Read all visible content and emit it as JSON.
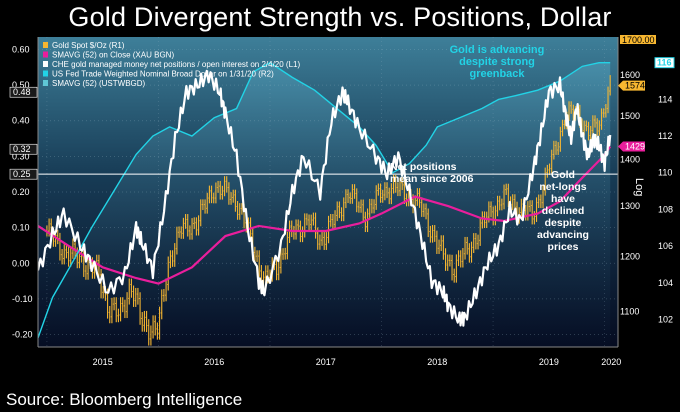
{
  "title": "Gold Divergent Strength vs. Positions, Dollar",
  "source": "Source: Bloomberg Intelligence",
  "chart_data": {
    "type": "line",
    "title": "Gold Divergent Strength vs. Positions, Dollar",
    "x_tick_labels": [
      "2015",
      "2016",
      "2017",
      "2018",
      "2019",
      "2020"
    ],
    "x_range": [
      2014.92,
      2020.12
    ],
    "left_axis": {
      "ticks": [
        -0.2,
        -0.1,
        0.0,
        0.1,
        0.2,
        0.3,
        0.4,
        0.5,
        0.6
      ],
      "tick_labels": [
        "-0.20",
        "-0.10",
        "0.00",
        "0.10",
        "0.20",
        "0.30",
        "0.40",
        "0.50",
        "0.60"
      ],
      "ylim": [
        -0.235,
        0.635
      ],
      "callouts": [
        "0.48",
        "0.32",
        "0.25"
      ]
    },
    "right_axis_1": {
      "label": "R1",
      "ticks": [
        1100,
        1200,
        1300,
        1400,
        1500,
        1600
      ],
      "tick_labels": [
        "1100",
        "1200",
        "1300",
        "1400",
        "1500",
        "1600"
      ],
      "ylim": [
        1040,
        1700
      ],
      "top_label": "1700.00",
      "log_label": "Log",
      "callouts": [
        {
          "text": "1574",
          "color": "#f7b731"
        },
        {
          "text": "1429",
          "color": "#e91e9c"
        }
      ]
    },
    "right_axis_2": {
      "label": "R2",
      "ticks": [
        102,
        104,
        106,
        108,
        110,
        112,
        114
      ],
      "tick_labels": [
        "102",
        "104",
        "106",
        "108",
        "110",
        "112",
        "114"
      ],
      "ylim": [
        100.5,
        117.4
      ],
      "callouts": [
        {
          "text": "116",
          "color": "#22d3e6"
        }
      ]
    },
    "legend": {
      "placement": "top-left",
      "entries": [
        {
          "label": "Gold Spot $/Oz  (R1)",
          "color": "#f7b731"
        },
        {
          "label": "SMAVG (52)  on Close (XAU BGN)",
          "color": "#e91e9c"
        },
        {
          "label": "CHE gold managed money net positions / open interest on 2/4/20  (L1)",
          "color": "#ffffff"
        },
        {
          "label": "US Fed Trade Weighted Nominal Broad Dollar  on 1/31/20  (R2)",
          "color": "#22d3e6"
        },
        {
          "label": "SMAVG (52)  (USTWBGD)",
          "color": "#5fc7d6"
        }
      ]
    },
    "reference_line": {
      "label_lines": [
        "Net positions",
        "mean since 2006"
      ],
      "value": 0.25
    },
    "annotations": [
      {
        "lines": [
          "Gold is advancing",
          "despite strong",
          "greenback"
        ],
        "color": "#22d3e6"
      },
      {
        "lines": [
          "Gold",
          "net-longs",
          "have",
          "declined",
          "despite",
          "advancing",
          "prices"
        ],
        "color": "#ffffff"
      }
    ],
    "series": [
      {
        "name": "Gold Spot $/Oz",
        "axis": "R1",
        "style": "bar-candles",
        "color": "#f7b731",
        "x": [
          2015.0,
          2015.15,
          2015.3,
          2015.45,
          2015.55,
          2015.65,
          2015.75,
          2015.85,
          2016.0,
          2016.1,
          2016.2,
          2016.35,
          2016.5,
          2016.6,
          2016.7,
          2016.85,
          2016.95,
          2017.1,
          2017.2,
          2017.35,
          2017.45,
          2017.6,
          2017.7,
          2017.85,
          2018.0,
          2018.1,
          2018.2,
          2018.35,
          2018.45,
          2018.55,
          2018.65,
          2018.8,
          2018.95,
          2019.1,
          2019.2,
          2019.35,
          2019.45,
          2019.55,
          2019.65,
          2019.75,
          2019.85,
          2019.95,
          2020.05
        ],
        "values": [
          1250,
          1210,
          1195,
          1170,
          1110,
          1090,
          1150,
          1080,
          1070,
          1200,
          1250,
          1270,
          1340,
          1330,
          1310,
          1220,
          1150,
          1200,
          1250,
          1270,
          1230,
          1280,
          1330,
          1280,
          1330,
          1340,
          1330,
          1300,
          1250,
          1200,
          1180,
          1220,
          1280,
          1320,
          1300,
          1280,
          1340,
          1420,
          1500,
          1510,
          1460,
          1480,
          1574
        ]
      },
      {
        "name": "SMAVG (52) on Close (XAU BGN)",
        "axis": "R1",
        "color": "#e91e9c",
        "x": [
          2014.92,
          2015.2,
          2015.5,
          2015.8,
          2016.0,
          2016.3,
          2016.6,
          2016.9,
          2017.2,
          2017.5,
          2017.8,
          2018.0,
          2018.3,
          2018.6,
          2018.9,
          2019.1,
          2019.4,
          2019.6,
          2019.8,
          2020.0,
          2020.05
        ],
        "values": [
          1260,
          1220,
          1180,
          1160,
          1150,
          1180,
          1240,
          1260,
          1250,
          1250,
          1265,
          1285,
          1320,
          1300,
          1275,
          1270,
          1285,
          1310,
          1360,
          1410,
          1429
        ]
      },
      {
        "name": "CHE gold managed money net positions / open interest",
        "axis": "L1",
        "color": "#ffffff",
        "x": [
          2014.92,
          2015.05,
          2015.15,
          2015.3,
          2015.4,
          2015.55,
          2015.7,
          2015.8,
          2015.85,
          2015.95,
          2016.05,
          2016.15,
          2016.25,
          2016.35,
          2016.45,
          2016.55,
          2016.6,
          2016.7,
          2016.8,
          2016.9,
          2016.95,
          2017.1,
          2017.2,
          2017.3,
          2017.45,
          2017.55,
          2017.65,
          2017.7,
          2017.8,
          2017.95,
          2018.05,
          2018.15,
          2018.25,
          2018.35,
          2018.45,
          2018.55,
          2018.6,
          2018.7,
          2018.75,
          2018.85,
          2018.95,
          2019.05,
          2019.15,
          2019.25,
          2019.35,
          2019.42,
          2019.5,
          2019.6,
          2019.65,
          2019.7,
          2019.75,
          2019.8,
          2019.85,
          2019.9,
          2019.95,
          2020.0,
          2020.05
        ],
        "values": [
          -0.02,
          0.08,
          0.14,
          0.05,
          0.0,
          -0.08,
          -0.03,
          0.1,
          0.06,
          -0.02,
          0.15,
          0.35,
          0.48,
          0.5,
          0.53,
          0.48,
          0.42,
          0.3,
          0.1,
          -0.05,
          -0.08,
          0.05,
          0.2,
          0.3,
          0.2,
          0.4,
          0.48,
          0.45,
          0.38,
          0.3,
          0.25,
          0.3,
          0.2,
          0.08,
          -0.05,
          -0.08,
          -0.12,
          -0.16,
          -0.15,
          -0.08,
          0.0,
          0.05,
          0.15,
          0.12,
          0.25,
          0.35,
          0.48,
          0.5,
          0.42,
          0.35,
          0.44,
          0.36,
          0.3,
          0.35,
          0.33,
          0.28,
          0.36
        ]
      },
      {
        "name": "US Fed Trade Weighted Nominal Broad Dollar",
        "axis": "R2",
        "color": "#22d3e6",
        "x": [
          2014.92,
          2015.05,
          2015.2,
          2015.4,
          2015.6,
          2015.8,
          2015.95,
          2016.1,
          2016.3,
          2016.5,
          2016.7,
          2016.85,
          2017.0,
          2017.2,
          2017.4,
          2017.6,
          2017.8,
          2017.95,
          2018.1,
          2018.25,
          2018.4,
          2018.5,
          2018.7,
          2018.9,
          2019.05,
          2019.2,
          2019.4,
          2019.6,
          2019.8,
          2019.95,
          2020.05
        ],
        "values": [
          101.0,
          103.2,
          104.8,
          107.0,
          109.0,
          111.0,
          112.0,
          112.5,
          112.0,
          113.0,
          113.5,
          115.5,
          116.0,
          115.2,
          114.5,
          113.5,
          112.5,
          111.5,
          110.0,
          110.5,
          111.5,
          112.5,
          113.0,
          113.5,
          114.0,
          114.2,
          114.5,
          115.0,
          115.8,
          116.0,
          116.0
        ]
      }
    ]
  }
}
